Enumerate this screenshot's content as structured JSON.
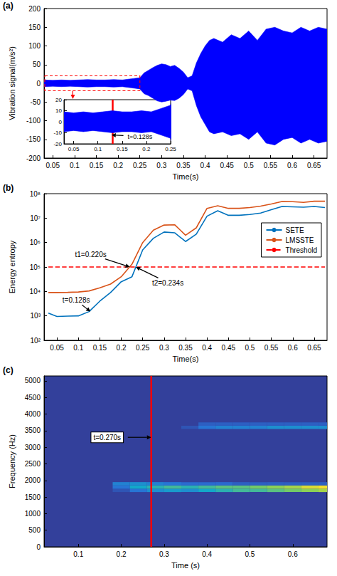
{
  "chart_data": [
    {
      "panel": "(a)",
      "type": "line",
      "x_label": "Time(s)",
      "y_label": "Vibration signal(m/s²)",
      "color": "#0000ff",
      "grid": false,
      "x": [
        0.03,
        0.05,
        0.07,
        0.09,
        0.11,
        0.13,
        0.15,
        0.17,
        0.19,
        0.21,
        0.23,
        0.25,
        0.26,
        0.27,
        0.28,
        0.29,
        0.3,
        0.31,
        0.32,
        0.33,
        0.34,
        0.35,
        0.36,
        0.37,
        0.38,
        0.39,
        0.4,
        0.41,
        0.42,
        0.44,
        0.46,
        0.48,
        0.5,
        0.52,
        0.54,
        0.56,
        0.58,
        0.6,
        0.62,
        0.64,
        0.66,
        0.68
      ],
      "envelope": {
        "upper": [
          9,
          8,
          9,
          8,
          9,
          10,
          9,
          9,
          10,
          9,
          12,
          15,
          28,
          35,
          42,
          48,
          52,
          50,
          45,
          48,
          40,
          30,
          15,
          20,
          55,
          80,
          100,
          115,
          120,
          110,
          130,
          120,
          140,
          115,
          145,
          150,
          140,
          135,
          150,
          140,
          150,
          145
        ],
        "lower": [
          -9,
          -8,
          -9,
          -8,
          -9,
          -10,
          -9,
          -9,
          -10,
          -9,
          -12,
          -15,
          -28,
          -33,
          -40,
          -47,
          -50,
          -48,
          -45,
          -46,
          -40,
          -30,
          -15,
          -20,
          -60,
          -90,
          -110,
          -130,
          -135,
          -130,
          -140,
          -135,
          -150,
          -130,
          -160,
          -165,
          -150,
          -145,
          -160,
          -150,
          -160,
          -155
        ]
      },
      "xlim": [
        0.03,
        0.68
      ],
      "xticks": [
        0.05,
        0.1,
        0.15,
        0.2,
        0.25,
        0.3,
        0.35,
        0.4,
        0.45,
        0.5,
        0.55,
        0.6,
        0.65
      ],
      "ylim": [
        -200,
        200
      ],
      "yticks": [
        -200,
        -150,
        -100,
        -50,
        0,
        50,
        100,
        150,
        200
      ],
      "inset": {
        "xlim": [
          0.03,
          0.25
        ],
        "xticks": [
          0.05,
          0.1,
          0.15,
          0.2,
          0.25
        ],
        "ylim": [
          -20,
          20
        ],
        "yticks": [
          -20,
          -10,
          0,
          10,
          20
        ],
        "marker_line": {
          "x": 0.128,
          "color": "#ff0000"
        },
        "annotations": [
          {
            "text": "t=0.128s",
            "x": 0.128,
            "y": -12
          }
        ]
      }
    },
    {
      "panel": "(b)",
      "type": "line",
      "log": "y",
      "x_label": "Time(s)",
      "y_label": "Energy entropy",
      "grid": false,
      "legend": "right",
      "x": [
        0.03,
        0.05,
        0.075,
        0.1,
        0.125,
        0.15,
        0.175,
        0.2,
        0.225,
        0.25,
        0.275,
        0.3,
        0.325,
        0.35,
        0.375,
        0.4,
        0.425,
        0.45,
        0.475,
        0.5,
        0.525,
        0.55,
        0.575,
        0.6,
        0.625,
        0.65,
        0.675
      ],
      "series": [
        {
          "name": "SETE",
          "color": "#0072bd",
          "line_style": "solid",
          "values": [
            1300,
            950,
            980,
            1000,
            1500,
            4000,
            9000,
            25000,
            40000,
            500000,
            1500000,
            2700000,
            2500000,
            1100000,
            2200000,
            12000000,
            20000000,
            13000000,
            13000000,
            14000000,
            16000000,
            22000000,
            30000000,
            29000000,
            28000000,
            30000000,
            27000000
          ]
        },
        {
          "name": "LMSSTE",
          "color": "#d95319",
          "line_style": "solid",
          "values": [
            9000,
            9000,
            9200,
            9500,
            10500,
            14000,
            20000,
            40000,
            130000,
            1000000,
            3200000,
            5200000,
            5300000,
            2000000,
            4000000,
            25000000,
            32000000,
            25000000,
            25000000,
            27000000,
            31000000,
            38000000,
            48000000,
            47000000,
            44000000,
            49000000,
            49000000
          ]
        },
        {
          "name": "Threshold",
          "color": "#ff0000",
          "line_style": "dashed",
          "values": [
            100000,
            100000,
            100000,
            100000,
            100000,
            100000,
            100000,
            100000,
            100000,
            100000,
            100000,
            100000,
            100000,
            100000,
            100000,
            100000,
            100000,
            100000,
            100000,
            100000,
            100000,
            100000,
            100000,
            100000,
            100000,
            100000,
            100000
          ]
        }
      ],
      "xlim": [
        0.02,
        0.68
      ],
      "xticks": [
        0.05,
        0.1,
        0.15,
        0.2,
        0.25,
        0.3,
        0.35,
        0.4,
        0.45,
        0.5,
        0.55,
        0.6,
        0.65
      ],
      "ylim": [
        100,
        100000000
      ],
      "yticks": [
        {
          "value": 100,
          "label": "10²"
        },
        {
          "value": 1000,
          "label": "10³"
        },
        {
          "value": 10000,
          "label": "10⁴"
        },
        {
          "value": 100000,
          "label": "10⁵"
        },
        {
          "value": 1000000,
          "label": "10⁶"
        },
        {
          "value": 10000000,
          "label": "10⁷"
        },
        {
          "value": 100000000,
          "label": "10⁸"
        }
      ],
      "annotations": [
        {
          "text": "t1=0.220s",
          "x": 0.22,
          "y": 100000
        },
        {
          "text": "t2=0.234s",
          "x": 0.234,
          "y": 100000
        },
        {
          "text": "t=0.128s",
          "x": 0.128,
          "y": 1500
        }
      ]
    },
    {
      "panel": "(c)",
      "type": "heatmap",
      "x_label": "Time (s)",
      "y_label": "Frequency (Hz)",
      "grid": false,
      "xlim": [
        0.02,
        0.68
      ],
      "xticks": [
        0.1,
        0.2,
        0.3,
        0.4,
        0.5,
        0.6
      ],
      "ylim": [
        0,
        5150
      ],
      "yticks": [
        0,
        500,
        1000,
        1500,
        2000,
        2500,
        3000,
        3500,
        4000,
        4500,
        5000
      ],
      "cells": [
        [
          0.18,
          0.22,
          1650,
          1750,
          0.1
        ],
        [
          0.22,
          0.26,
          1650,
          1750,
          0.25
        ],
        [
          0.26,
          0.3,
          1650,
          1750,
          0.35
        ],
        [
          0.3,
          0.34,
          1650,
          1750,
          0.4
        ],
        [
          0.34,
          0.38,
          1650,
          1750,
          0.35
        ],
        [
          0.38,
          0.42,
          1650,
          1750,
          0.45
        ],
        [
          0.42,
          0.46,
          1650,
          1750,
          0.5
        ],
        [
          0.46,
          0.5,
          1650,
          1750,
          0.55
        ],
        [
          0.5,
          0.54,
          1650,
          1750,
          0.55
        ],
        [
          0.54,
          0.58,
          1650,
          1750,
          0.6
        ],
        [
          0.58,
          0.62,
          1650,
          1750,
          0.65
        ],
        [
          0.62,
          0.66,
          1650,
          1750,
          0.7
        ],
        [
          0.66,
          0.7,
          1650,
          1750,
          0.75
        ],
        [
          0.18,
          0.22,
          1750,
          1850,
          0.25
        ],
        [
          0.22,
          0.26,
          1750,
          1850,
          0.45
        ],
        [
          0.26,
          0.3,
          1750,
          1850,
          0.5
        ],
        [
          0.3,
          0.34,
          1750,
          1850,
          0.55
        ],
        [
          0.34,
          0.38,
          1750,
          1850,
          0.5
        ],
        [
          0.38,
          0.42,
          1750,
          1850,
          0.55
        ],
        [
          0.42,
          0.46,
          1750,
          1850,
          0.6
        ],
        [
          0.46,
          0.5,
          1750,
          1850,
          0.6
        ],
        [
          0.5,
          0.54,
          1750,
          1850,
          0.65
        ],
        [
          0.54,
          0.58,
          1750,
          1850,
          0.7
        ],
        [
          0.58,
          0.62,
          1750,
          1850,
          0.75
        ],
        [
          0.62,
          0.66,
          1750,
          1850,
          0.85
        ],
        [
          0.66,
          0.7,
          1750,
          1850,
          0.9
        ],
        [
          0.18,
          0.22,
          1850,
          1950,
          0.3
        ],
        [
          0.22,
          0.26,
          1850,
          1950,
          0.35
        ],
        [
          0.26,
          0.3,
          1850,
          1950,
          0.3
        ],
        [
          0.3,
          0.34,
          1850,
          1950,
          0.25
        ],
        [
          0.34,
          0.38,
          1850,
          1950,
          0.2
        ],
        [
          0.38,
          0.42,
          1850,
          1950,
          0.2
        ],
        [
          0.42,
          0.46,
          1850,
          1950,
          0.2
        ],
        [
          0.46,
          0.5,
          1850,
          1950,
          0.15
        ],
        [
          0.5,
          0.54,
          1850,
          1950,
          0.15
        ],
        [
          0.54,
          0.58,
          1850,
          1950,
          0.15
        ],
        [
          0.58,
          0.62,
          1850,
          1950,
          0.15
        ],
        [
          0.62,
          0.66,
          1850,
          1950,
          0.15
        ],
        [
          0.66,
          0.7,
          1850,
          1950,
          0.15
        ],
        [
          0.34,
          0.38,
          3550,
          3650,
          0.1
        ],
        [
          0.38,
          0.42,
          3550,
          3650,
          0.25
        ],
        [
          0.42,
          0.46,
          3550,
          3650,
          0.3
        ],
        [
          0.46,
          0.5,
          3550,
          3650,
          0.3
        ],
        [
          0.5,
          0.54,
          3550,
          3650,
          0.3
        ],
        [
          0.54,
          0.58,
          3550,
          3650,
          0.35
        ],
        [
          0.58,
          0.62,
          3550,
          3650,
          0.35
        ],
        [
          0.62,
          0.66,
          3550,
          3650,
          0.35
        ],
        [
          0.66,
          0.7,
          3550,
          3650,
          0.35
        ],
        [
          0.38,
          0.42,
          3650,
          3750,
          0.15
        ],
        [
          0.42,
          0.46,
          3650,
          3750,
          0.15
        ],
        [
          0.46,
          0.5,
          3650,
          3750,
          0.15
        ],
        [
          0.5,
          0.54,
          3650,
          3750,
          0.15
        ],
        [
          0.54,
          0.58,
          3650,
          3750,
          0.15
        ],
        [
          0.58,
          0.62,
          3650,
          3750,
          0.15
        ],
        [
          0.62,
          0.66,
          3650,
          3750,
          0.15
        ],
        [
          0.66,
          0.7,
          3650,
          3750,
          0.15
        ]
      ],
      "marker_line": {
        "x": 0.27,
        "color": "#ff0000"
      },
      "annotations": [
        {
          "text": "t=0.270s",
          "x": 0.27,
          "y": 3300
        }
      ]
    }
  ]
}
